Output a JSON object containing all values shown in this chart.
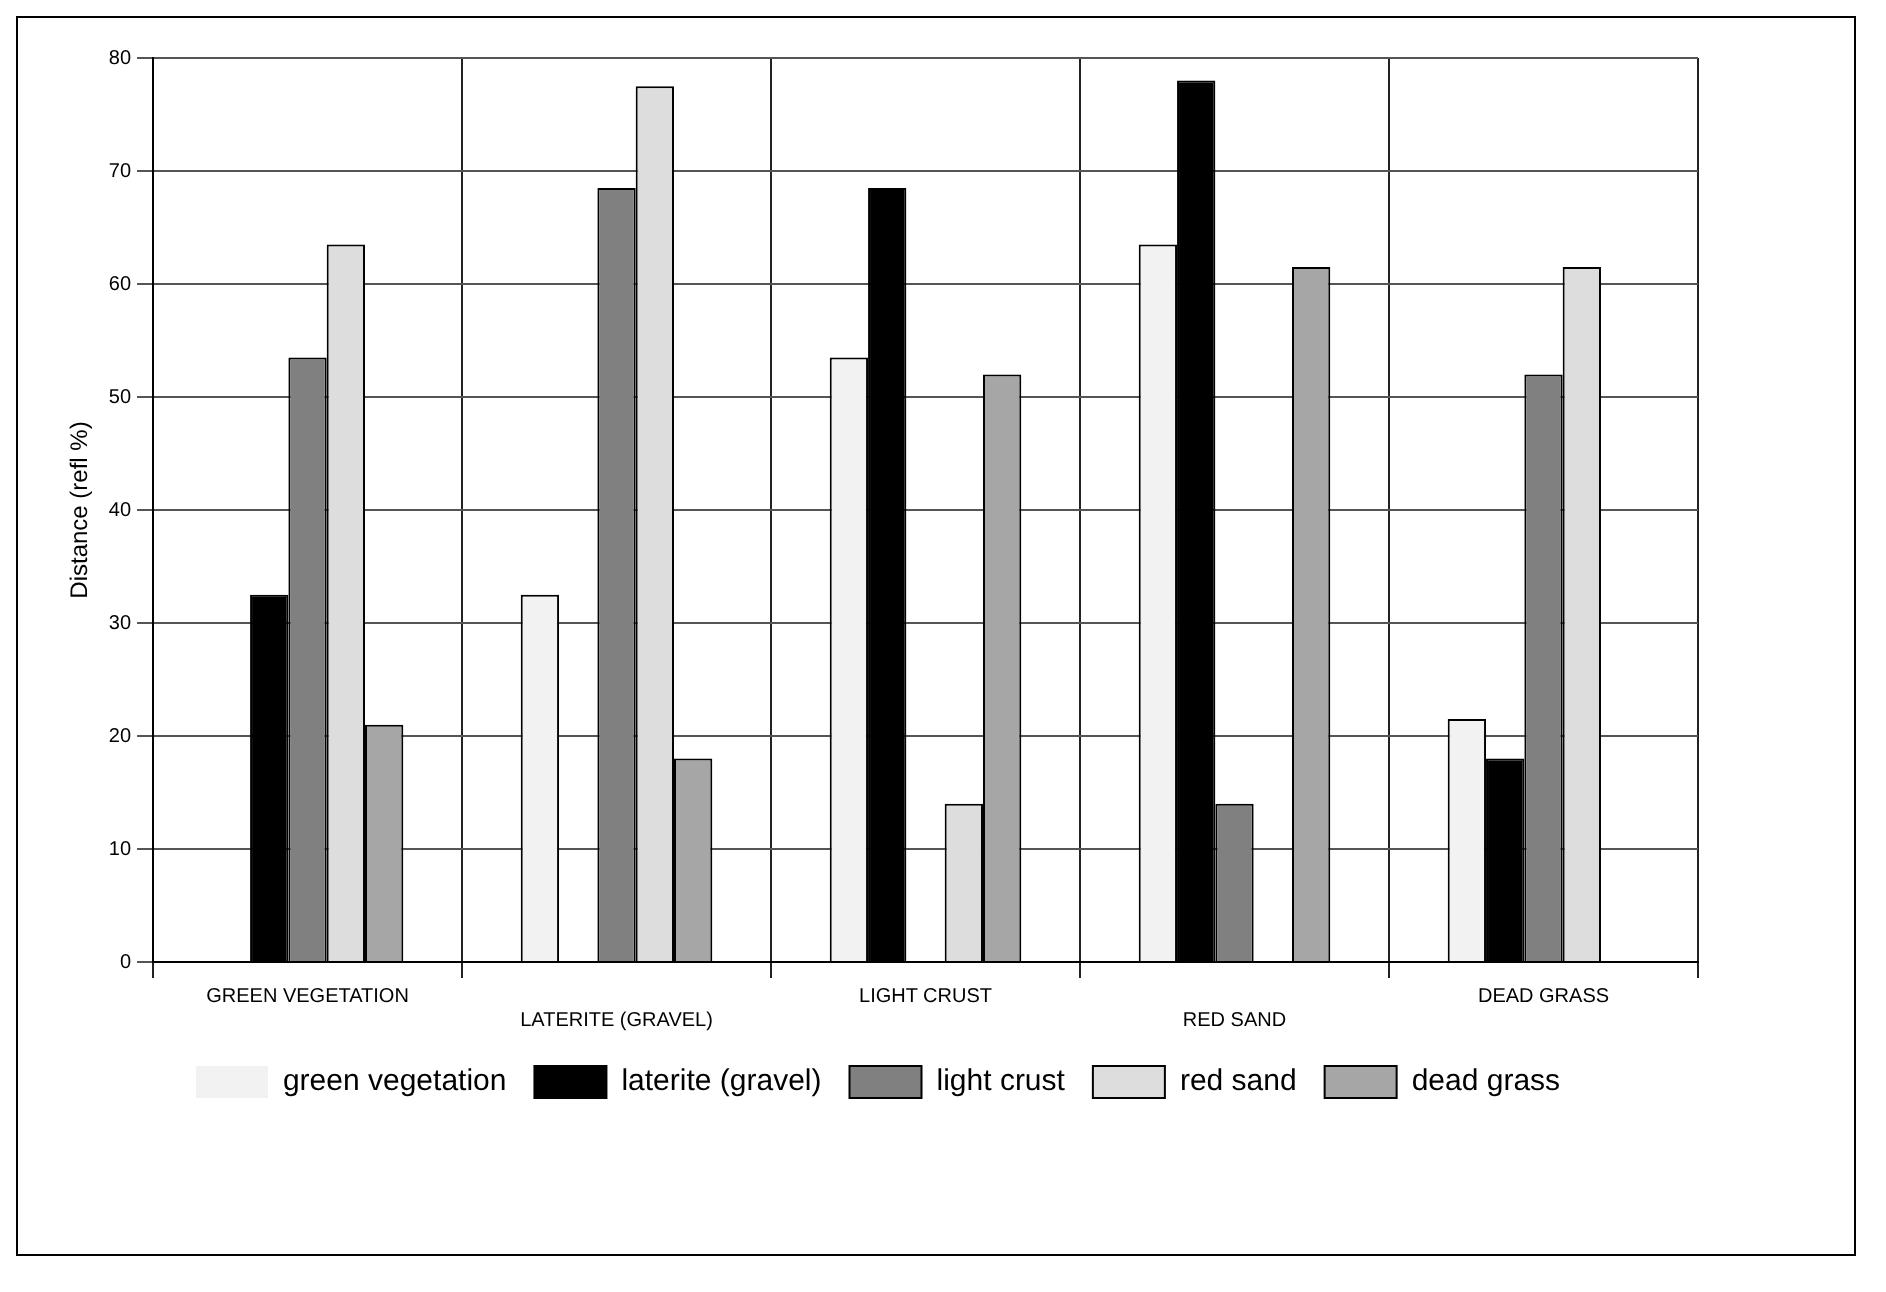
{
  "chart_data": {
    "type": "bar",
    "ylabel": "Distance (refl %)",
    "categories": [
      "GREEN VEGETATION",
      "LATERITE (GRAVEL)",
      "LIGHT CRUST",
      "RED SAND",
      "DEAD GRASS"
    ],
    "series": [
      {
        "name": "green vegetation",
        "color": "#f2f2f2",
        "values": [
          0,
          32.5,
          53.5,
          63.5,
          21.5
        ]
      },
      {
        "name": "laterite (gravel)",
        "color": "#000000",
        "values": [
          32.5,
          0,
          68.5,
          78,
          18
        ]
      },
      {
        "name": "light crust",
        "color": "#808080",
        "values": [
          53.5,
          68.5,
          0,
          14,
          52
        ]
      },
      {
        "name": "red sand",
        "color": "#dddddd",
        "values": [
          63.5,
          77.5,
          14,
          0,
          61.5
        ]
      },
      {
        "name": "dead grass",
        "color": "#a6a6a6",
        "values": [
          21,
          18,
          52,
          61.5,
          0
        ]
      }
    ],
    "ylim": [
      0,
      80
    ],
    "yticks": [
      0,
      10,
      20,
      30,
      40,
      50,
      60,
      70,
      80
    ],
    "grid": true,
    "legend": "bottom"
  }
}
